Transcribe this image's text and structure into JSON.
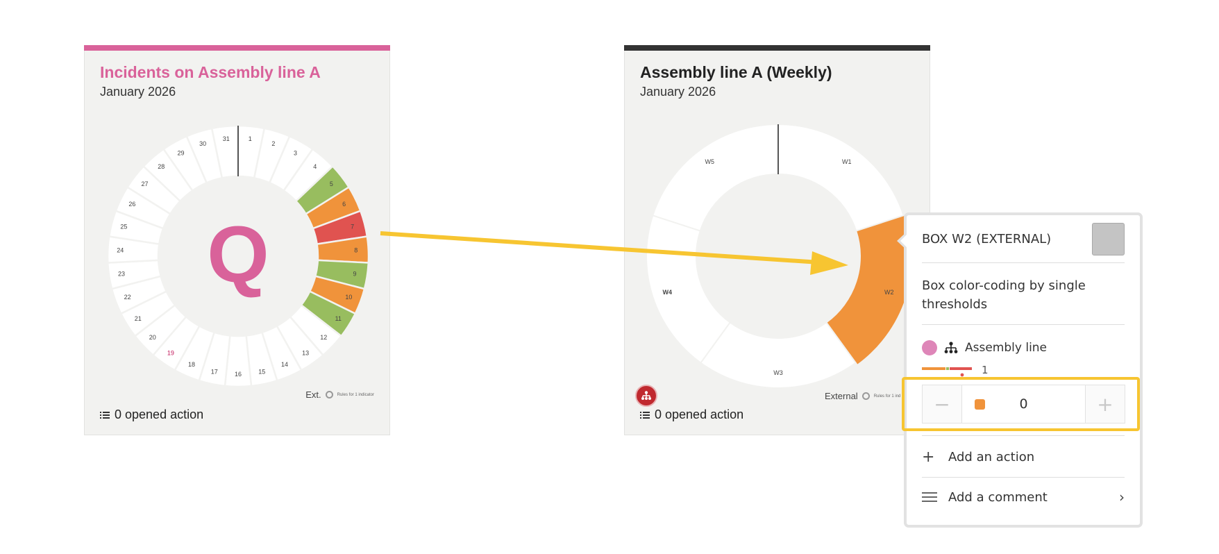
{
  "card1": {
    "title": "Incidents on Assembly line A",
    "subtitle": "January 2026",
    "center_letter": "Q",
    "days": [
      "1",
      "2",
      "3",
      "4",
      "5",
      "6",
      "7",
      "8",
      "9",
      "10",
      "11",
      "12",
      "13",
      "14",
      "15",
      "16",
      "17",
      "18",
      "19",
      "20",
      "21",
      "22",
      "23",
      "24",
      "25",
      "26",
      "27",
      "28",
      "29",
      "30",
      "31"
    ],
    "day_status": {
      "5": "green",
      "6": "orange",
      "7": "red",
      "8": "orange",
      "9": "green",
      "10": "orange",
      "11": "green"
    },
    "highlight_day": "19",
    "legend_label": "Ext.",
    "legend_tiny": "Rules for 1 indicator",
    "actions_label": "0 opened action"
  },
  "card2": {
    "title": "Assembly line A (Weekly)",
    "subtitle": "January 2026",
    "weeks": [
      "W1",
      "W2",
      "W3",
      "W4",
      "W5"
    ],
    "week_status": {
      "W2": "orange"
    },
    "legend_label": "External",
    "legend_tiny": "Rules for 1 ind",
    "actions_label": "0 opened action"
  },
  "colors": {
    "pink": "#d9629a",
    "dark": "#333333",
    "green": "#98bd5f",
    "orange": "#f0933b",
    "red": "#e05350",
    "yellow": "#f7c531",
    "empty": "#ffffff"
  },
  "popup": {
    "title": "BOX W2 (EXTERNAL)",
    "description": "Box color-coding by single thresholds",
    "indicator_label": "Assembly line",
    "indicator_count": "1",
    "stepper_value": "0",
    "add_action_label": "Add an action",
    "add_comment_label": "Add a comment"
  }
}
